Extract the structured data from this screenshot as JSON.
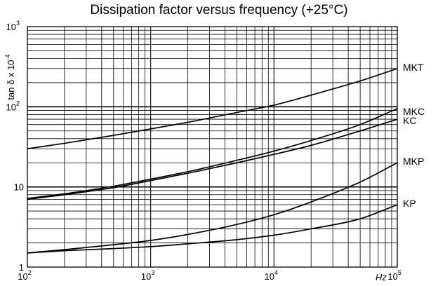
{
  "chart_data": {
    "type": "line",
    "title": "Dissipation factor versus frequency (+25°C)",
    "xlabel": "Hz",
    "ylabel": "tan δ x 10",
    "ylabel_exponent": "-4",
    "x_scale": "log",
    "y_scale": "log",
    "xlim": [
      100,
      100000
    ],
    "ylim": [
      1,
      1000
    ],
    "grid": true,
    "x_ticks": [
      {
        "mantissa": "10",
        "exp": "2"
      },
      {
        "mantissa": "10",
        "exp": "3"
      },
      {
        "mantissa": "10",
        "exp": "4"
      },
      {
        "mantissa": "10",
        "exp": "5"
      }
    ],
    "y_ticks": [
      {
        "value": 1,
        "mantissa": "1",
        "exp": ""
      },
      {
        "value": 10,
        "mantissa": "10",
        "exp": ""
      },
      {
        "value": 100,
        "mantissa": "10",
        "exp": "2"
      },
      {
        "value": 1000,
        "mantissa": "10",
        "exp": "3"
      }
    ],
    "x": [
      100,
      200,
      500,
      1000,
      2000,
      5000,
      10000,
      20000,
      50000,
      100000
    ],
    "series": [
      {
        "name": "MKT",
        "values": [
          30,
          35,
          44,
          53,
          64,
          85,
          105,
          140,
          210,
          300
        ]
      },
      {
        "name": "MKC",
        "values": [
          7.2,
          8.2,
          10.2,
          12.5,
          15.5,
          21.5,
          28,
          38,
          60,
          95
        ]
      },
      {
        "name": "KC",
        "values": [
          7.0,
          8.0,
          9.8,
          12,
          14.8,
          20,
          25.5,
          33,
          50,
          70
        ]
      },
      {
        "name": "MKP",
        "values": [
          1.5,
          1.65,
          1.9,
          2.15,
          2.55,
          3.4,
          4.5,
          6.5,
          11.5,
          20
        ]
      },
      {
        "name": "KP",
        "values": [
          1.5,
          1.6,
          1.7,
          1.8,
          1.95,
          2.2,
          2.5,
          3.0,
          4.0,
          6.0
        ]
      }
    ]
  }
}
